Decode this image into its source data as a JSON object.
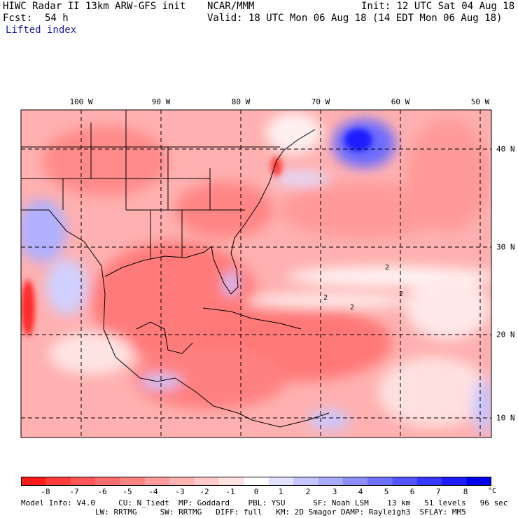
{
  "header": {
    "title": "HIWC Radar II 13km ARW-GFS init",
    "source": "NCAR/MMM",
    "init": "Init: 12 UTC Sat 04 Aug 18",
    "fcst_label": "Fcst:",
    "fcst_value": "54 h",
    "valid": "Valid: 18 UTC Mon 06 Aug 18 (14 EDT Mon 06 Aug 18)",
    "field": "Lifted index"
  },
  "map": {
    "lon_labels": [
      "100 W",
      "90 W",
      "80 W",
      "70 W",
      "60 W",
      "50 W"
    ],
    "lat_labels": [
      "40 N",
      "30 N",
      "20 N",
      "10 N"
    ],
    "contour_labels": [
      "2",
      "2",
      "2",
      "2"
    ]
  },
  "colorbar": {
    "labels": [
      "-8",
      "-7",
      "-6",
      "-5",
      "-4",
      "-3",
      "-2",
      "-1",
      "0",
      "1",
      "2",
      "3",
      "4",
      "5",
      "6",
      "7",
      "8"
    ],
    "unit": "°C",
    "colors": [
      "#ff1a1a",
      "#ff3c3c",
      "#ff5757",
      "#ff6f6f",
      "#ff8585",
      "#ff9c9c",
      "#ffb3b3",
      "#ffcaca",
      "#ffe2e2",
      "#ffffff",
      "#e3e3ff",
      "#c6c6ff",
      "#aaaaff",
      "#8e8eff",
      "#7171ff",
      "#5555ff",
      "#3838ff",
      "#1c1cff",
      "#0000ee"
    ]
  },
  "footer": {
    "line1": "Model Info: V4.0     CU: N_Tiedt  MP: Goddard    PBL: YSU      SF: Noah LSM    13 km   51 levels   96 sec",
    "line2": "                LW: RRTMG     SW: RRTMG   DIFF: full   KM: 2D Smagor DAMP: Rayleigh3  SFLAY: MM5"
  }
}
